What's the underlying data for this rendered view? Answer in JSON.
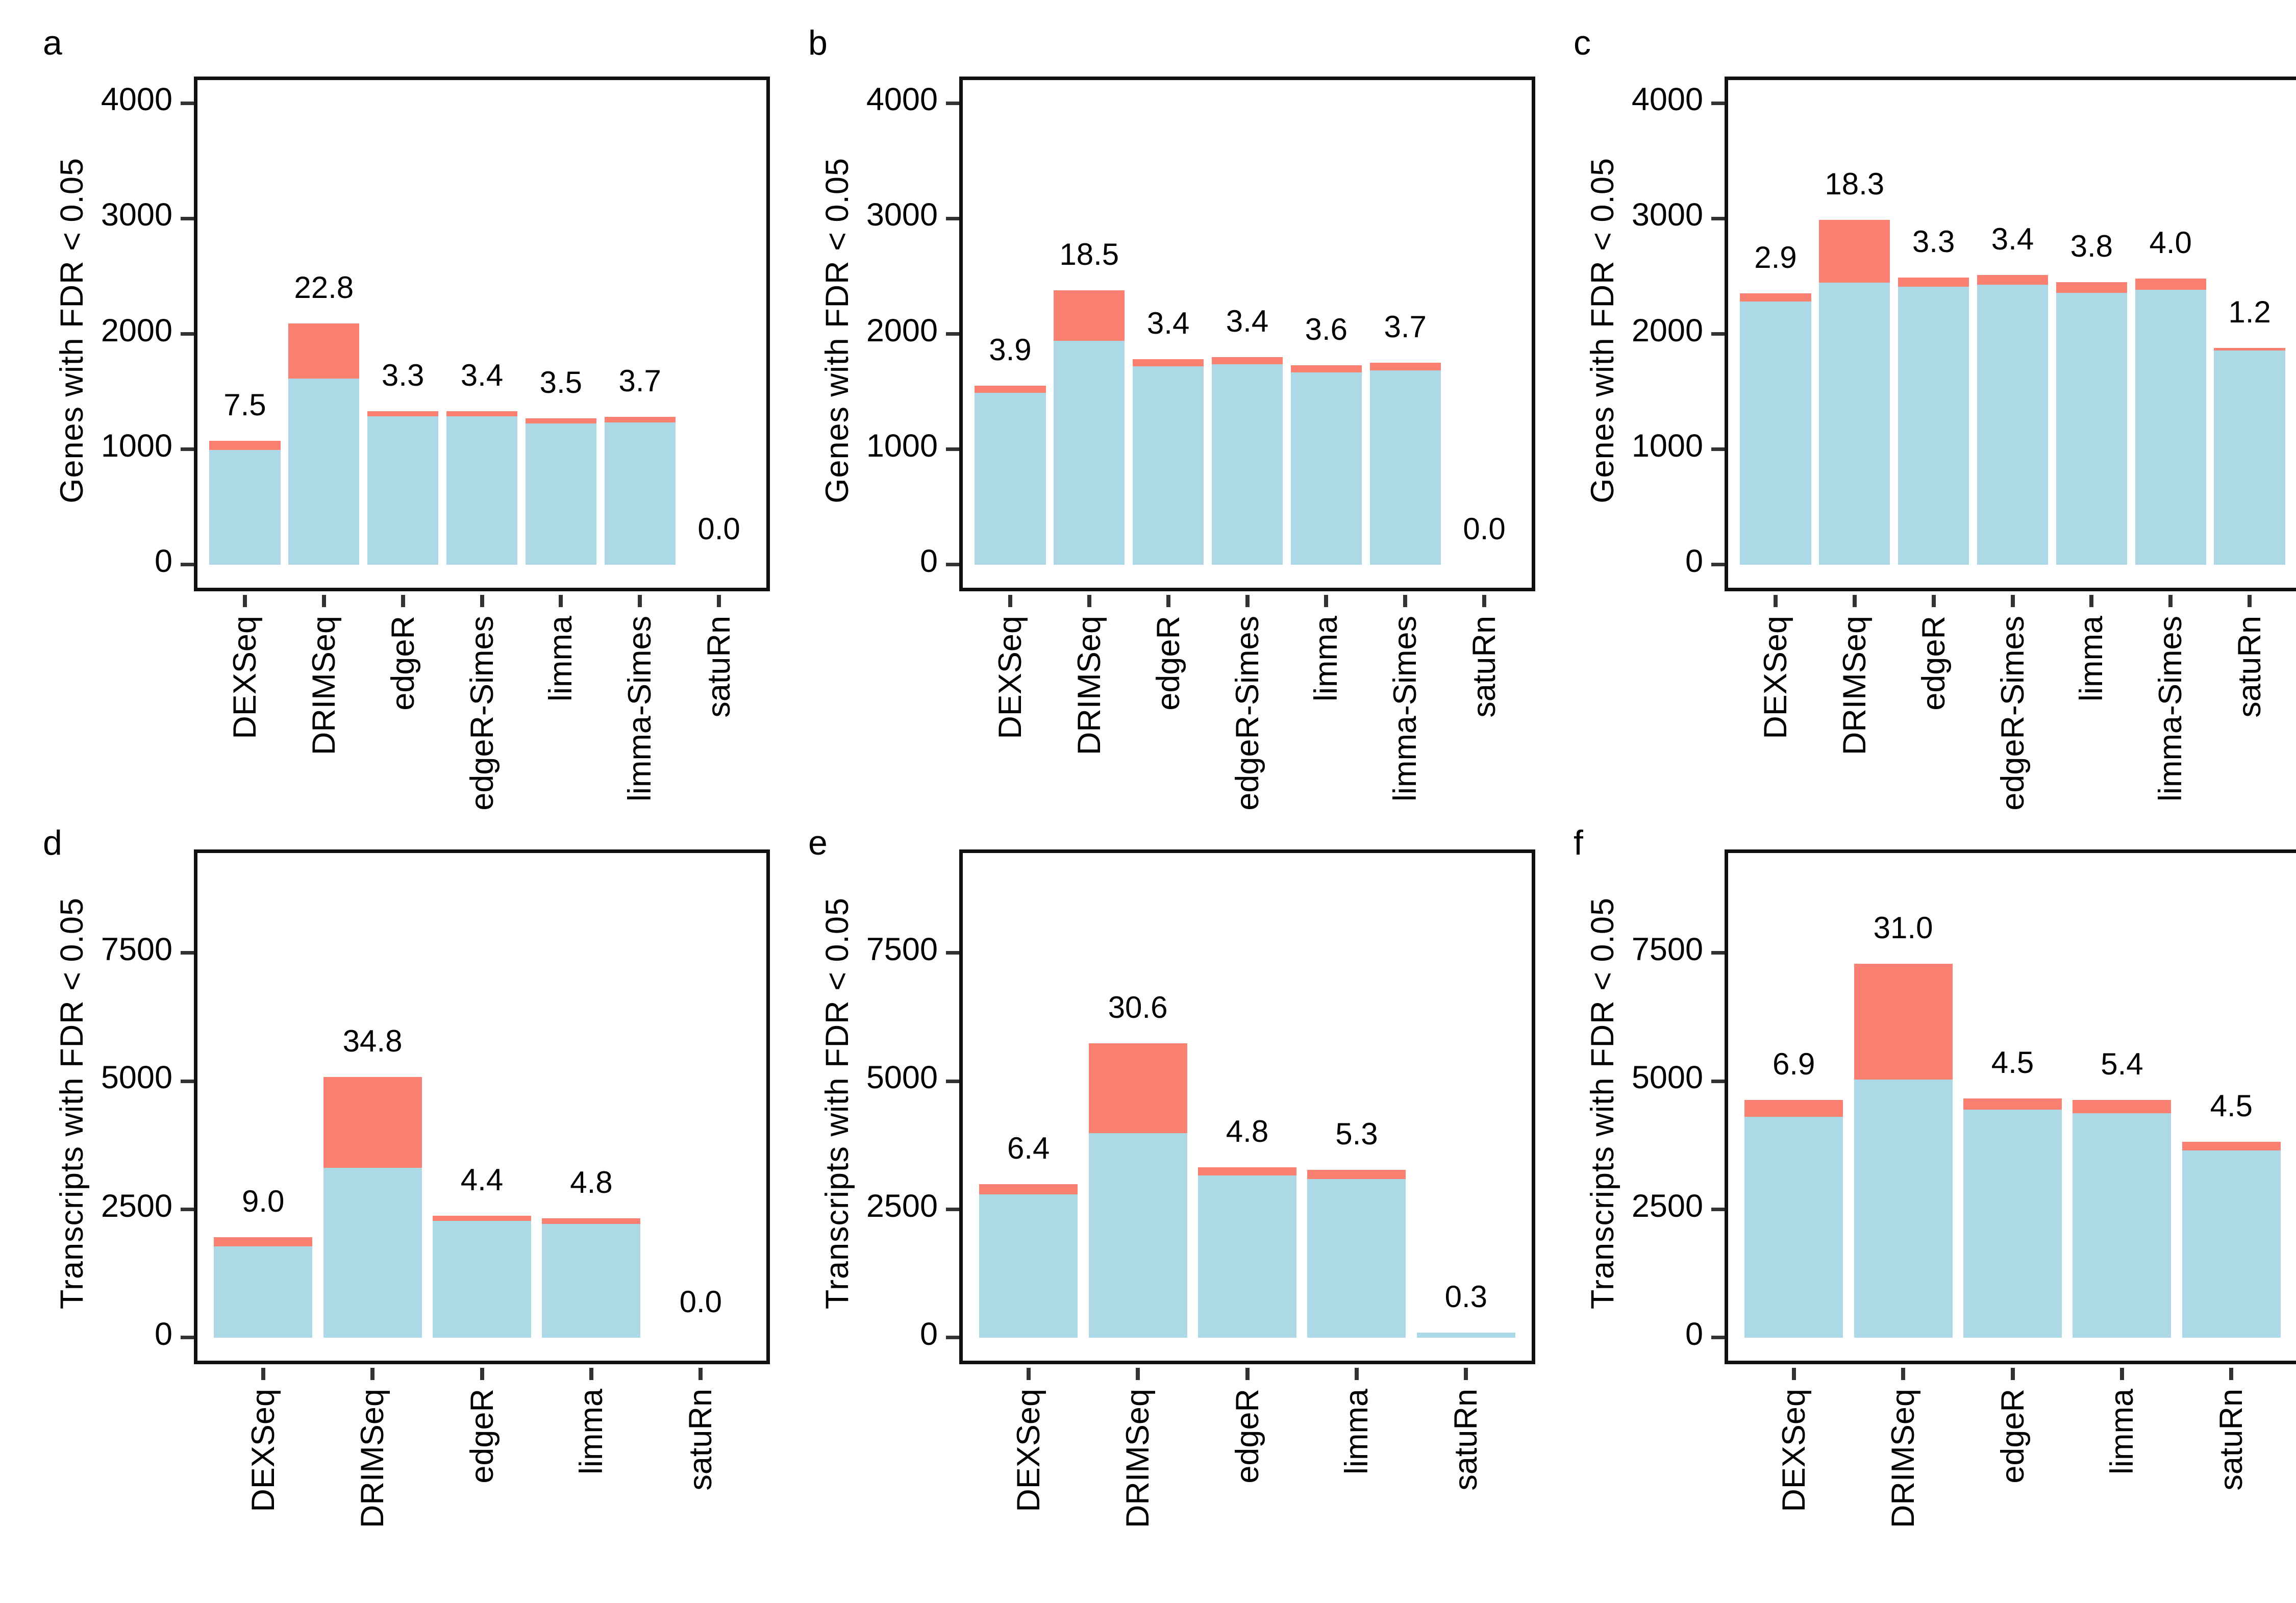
{
  "figure": {
    "background": "#ffffff",
    "colors": {
      "bar_blue": "#ADD8E6",
      "bar_red": "#FA8072",
      "axis_line": "#111111",
      "tick_mark": "#333333",
      "text": "#000000"
    },
    "layout": "2 rows x 3 columns of stacked bar charts, panel letters a-f, no legend"
  },
  "chart_data": [
    {
      "panel": "a",
      "type": "bar",
      "subtype": "stacked",
      "ylabel": "Genes with FDR < 0.05",
      "xlabel": "",
      "yticks": [
        0,
        1000,
        2000,
        3000,
        4000
      ],
      "y_domain": [
        -200,
        4200
      ],
      "grid": false,
      "legend": false,
      "categories": [
        "DEXSeq",
        "DRIMSeq",
        "edgeR",
        "edgeR-Simes",
        "limma",
        "limma-Simes",
        "satuRn"
      ],
      "bars": [
        {
          "method": "DEXSeq",
          "total": 1075,
          "fdp": "7.5"
        },
        {
          "method": "DRIMSeq",
          "total": 2090,
          "fdp": "22.8"
        },
        {
          "method": "edgeR",
          "total": 1330,
          "fdp": "3.3"
        },
        {
          "method": "edgeR-Simes",
          "total": 1330,
          "fdp": "3.4"
        },
        {
          "method": "limma",
          "total": 1270,
          "fdp": "3.5"
        },
        {
          "method": "limma-Simes",
          "total": 1280,
          "fdp": "3.7"
        },
        {
          "method": "satuRn",
          "total": 0,
          "fdp": "0.0"
        }
      ]
    },
    {
      "panel": "b",
      "type": "bar",
      "subtype": "stacked",
      "ylabel": "Genes with FDR < 0.05",
      "xlabel": "",
      "yticks": [
        0,
        1000,
        2000,
        3000,
        4000
      ],
      "y_domain": [
        -200,
        4200
      ],
      "grid": false,
      "legend": false,
      "categories": [
        "DEXSeq",
        "DRIMSeq",
        "edgeR",
        "edgeR-Simes",
        "limma",
        "limma-Simes",
        "satuRn"
      ],
      "bars": [
        {
          "method": "DEXSeq",
          "total": 1550,
          "fdp": "3.9"
        },
        {
          "method": "DRIMSeq",
          "total": 2380,
          "fdp": "18.5"
        },
        {
          "method": "edgeR",
          "total": 1780,
          "fdp": "3.4"
        },
        {
          "method": "edgeR-Simes",
          "total": 1800,
          "fdp": "3.4"
        },
        {
          "method": "limma",
          "total": 1730,
          "fdp": "3.6"
        },
        {
          "method": "limma-Simes",
          "total": 1750,
          "fdp": "3.7"
        },
        {
          "method": "satuRn",
          "total": 0,
          "fdp": "0.0"
        }
      ]
    },
    {
      "panel": "c",
      "type": "bar",
      "subtype": "stacked",
      "ylabel": "Genes with FDR < 0.05",
      "xlabel": "",
      "yticks": [
        0,
        1000,
        2000,
        3000,
        4000
      ],
      "y_domain": [
        -200,
        4200
      ],
      "grid": false,
      "legend": false,
      "categories": [
        "DEXSeq",
        "DRIMSeq",
        "edgeR",
        "edgeR-Simes",
        "limma",
        "limma-Simes",
        "satuRn"
      ],
      "bars": [
        {
          "method": "DEXSeq",
          "total": 2350,
          "fdp": "2.9"
        },
        {
          "method": "DRIMSeq",
          "total": 2990,
          "fdp": "18.3"
        },
        {
          "method": "edgeR",
          "total": 2490,
          "fdp": "3.3"
        },
        {
          "method": "edgeR-Simes",
          "total": 2510,
          "fdp": "3.4"
        },
        {
          "method": "limma",
          "total": 2450,
          "fdp": "3.8"
        },
        {
          "method": "limma-Simes",
          "total": 2480,
          "fdp": "4.0"
        },
        {
          "method": "satuRn",
          "total": 1880,
          "fdp": "1.2"
        }
      ]
    },
    {
      "panel": "d",
      "type": "bar",
      "subtype": "stacked",
      "ylabel": "Transcripts with FDR < 0.05",
      "xlabel": "",
      "yticks": [
        0,
        2500,
        5000,
        7500
      ],
      "y_domain": [
        -450,
        9450
      ],
      "grid": false,
      "legend": false,
      "categories": [
        "DEXSeq",
        "DRIMSeq",
        "edgeR",
        "limma",
        "satuRn"
      ],
      "bars": [
        {
          "method": "DEXSeq",
          "total": 1960,
          "fdp": "9.0"
        },
        {
          "method": "DRIMSeq",
          "total": 5080,
          "fdp": "34.8"
        },
        {
          "method": "edgeR",
          "total": 2380,
          "fdp": "4.4"
        },
        {
          "method": "limma",
          "total": 2330,
          "fdp": "4.8"
        },
        {
          "method": "satuRn",
          "total": 0,
          "fdp": "0.0"
        }
      ]
    },
    {
      "panel": "e",
      "type": "bar",
      "subtype": "stacked",
      "ylabel": "Transcripts with FDR < 0.05",
      "xlabel": "",
      "yticks": [
        0,
        2500,
        5000,
        7500
      ],
      "y_domain": [
        -450,
        9450
      ],
      "grid": false,
      "legend": false,
      "categories": [
        "DEXSeq",
        "DRIMSeq",
        "edgeR",
        "limma",
        "satuRn"
      ],
      "bars": [
        {
          "method": "DEXSeq",
          "total": 2990,
          "fdp": "6.4"
        },
        {
          "method": "DRIMSeq",
          "total": 5740,
          "fdp": "30.6"
        },
        {
          "method": "edgeR",
          "total": 3320,
          "fdp": "4.8"
        },
        {
          "method": "limma",
          "total": 3270,
          "fdp": "5.3"
        },
        {
          "method": "satuRn",
          "total": 100,
          "fdp": "0.3"
        }
      ]
    },
    {
      "panel": "f",
      "type": "bar",
      "subtype": "stacked",
      "ylabel": "Transcripts with FDR < 0.05",
      "xlabel": "",
      "yticks": [
        0,
        2500,
        5000,
        7500
      ],
      "y_domain": [
        -450,
        9450
      ],
      "grid": false,
      "legend": false,
      "categories": [
        "DEXSeq",
        "DRIMSeq",
        "edgeR",
        "limma",
        "satuRn"
      ],
      "bars": [
        {
          "method": "DEXSeq",
          "total": 4630,
          "fdp": "6.9"
        },
        {
          "method": "DRIMSeq",
          "total": 7290,
          "fdp": "31.0"
        },
        {
          "method": "edgeR",
          "total": 4660,
          "fdp": "4.5"
        },
        {
          "method": "limma",
          "total": 4630,
          "fdp": "5.4"
        },
        {
          "method": "satuRn",
          "total": 3820,
          "fdp": "4.5"
        }
      ]
    }
  ]
}
